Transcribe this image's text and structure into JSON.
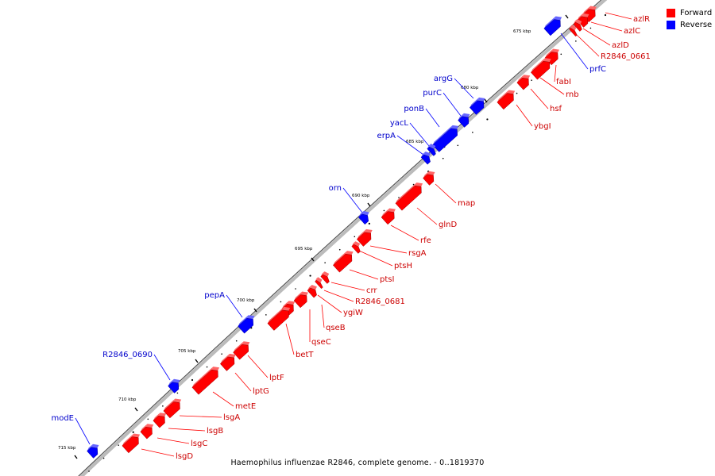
{
  "colors": {
    "forward": "#ff0000",
    "reverse": "#0000ff",
    "backbone": "#999999",
    "tick": "#000000",
    "forward_label": "#cc0000",
    "reverse_label": "#0000cc"
  },
  "legend": [
    {
      "label": "Forward",
      "color": "#ff0000"
    },
    {
      "label": "Reverse",
      "color": "#0000ff"
    }
  ],
  "caption": "Haemophilus influenzae R2846, complete genome. - 0..1819370",
  "scale_labels": [
    "675 kbp",
    "680 kbp",
    "685 kbp",
    "690 kbp",
    "695 kbp",
    "700 kbp",
    "705 kbp",
    "710 kbp",
    "715 kbp"
  ],
  "genes": [
    {
      "name": "azlR",
      "strand": "forward"
    },
    {
      "name": "azlC",
      "strand": "forward"
    },
    {
      "name": "azlD",
      "strand": "forward"
    },
    {
      "name": "R2846_0661",
      "strand": "forward"
    },
    {
      "name": "prfC",
      "strand": "reverse"
    },
    {
      "name": "fabI",
      "strand": "forward"
    },
    {
      "name": "rnb",
      "strand": "forward"
    },
    {
      "name": "hsf",
      "strand": "forward"
    },
    {
      "name": "ybgI",
      "strand": "forward"
    },
    {
      "name": "argG",
      "strand": "reverse"
    },
    {
      "name": "purC",
      "strand": "reverse"
    },
    {
      "name": "ponB",
      "strand": "reverse"
    },
    {
      "name": "yacL",
      "strand": "reverse"
    },
    {
      "name": "erpA",
      "strand": "reverse"
    },
    {
      "name": "map",
      "strand": "forward"
    },
    {
      "name": "glnD",
      "strand": "forward"
    },
    {
      "name": "orn",
      "strand": "reverse"
    },
    {
      "name": "rfe",
      "strand": "forward"
    },
    {
      "name": "rsgA",
      "strand": "forward"
    },
    {
      "name": "ptsH",
      "strand": "forward"
    },
    {
      "name": "ptsI",
      "strand": "forward"
    },
    {
      "name": "crr",
      "strand": "forward"
    },
    {
      "name": "R2846_0681",
      "strand": "forward"
    },
    {
      "name": "ygiW",
      "strand": "forward"
    },
    {
      "name": "qseB",
      "strand": "forward"
    },
    {
      "name": "qseC",
      "strand": "forward"
    },
    {
      "name": "betT",
      "strand": "forward"
    },
    {
      "name": "pepA",
      "strand": "reverse"
    },
    {
      "name": "lptF",
      "strand": "forward"
    },
    {
      "name": "lptG",
      "strand": "forward"
    },
    {
      "name": "metE",
      "strand": "forward"
    },
    {
      "name": "R2846_0690",
      "strand": "reverse"
    },
    {
      "name": "lsgA",
      "strand": "forward"
    },
    {
      "name": "lsgB",
      "strand": "forward"
    },
    {
      "name": "lsgC",
      "strand": "forward"
    },
    {
      "name": "lsgD",
      "strand": "forward"
    },
    {
      "name": "modE",
      "strand": "reverse"
    }
  ]
}
